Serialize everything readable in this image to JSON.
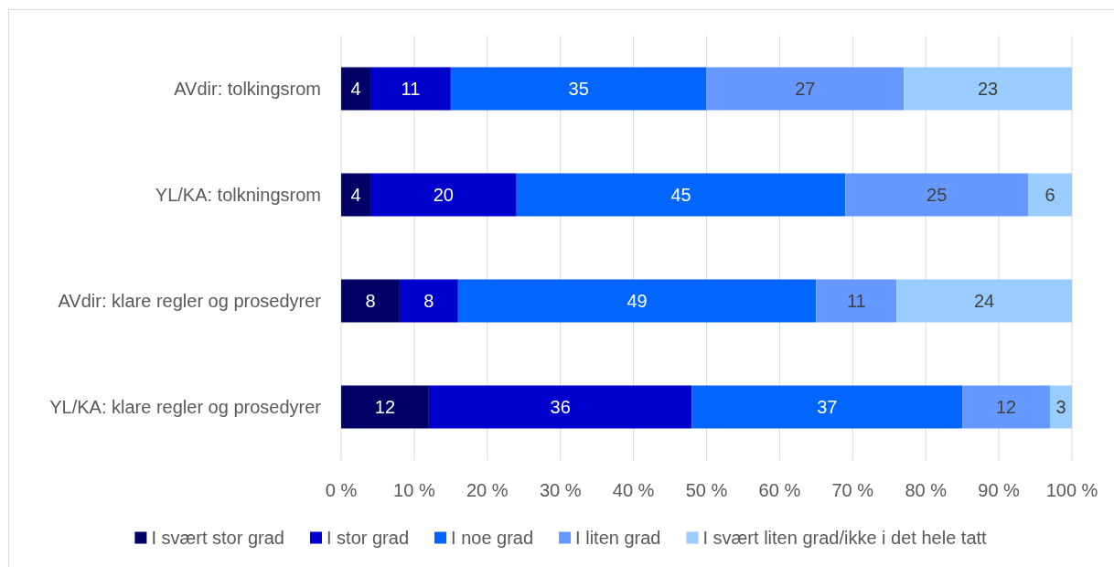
{
  "chart_data": {
    "type": "bar",
    "orientation": "horizontal",
    "stacked": true,
    "categories": [
      "AVdir: tolkingsrom",
      "YL/KA: tolkningsrom",
      "AVdir: klare regler og prosedyrer",
      "YL/KA: klare regler og prosedyrer"
    ],
    "series": [
      {
        "name": "I svært stor grad",
        "color": "#000066",
        "values": [
          4,
          4,
          8,
          12
        ]
      },
      {
        "name": "I stor grad",
        "color": "#0000cc",
        "values": [
          11,
          20,
          8,
          36
        ]
      },
      {
        "name": "I noe grad",
        "color": "#0066ff",
        "values": [
          35,
          45,
          49,
          37
        ]
      },
      {
        "name": "I liten grad",
        "color": "#6699ff",
        "values": [
          27,
          25,
          11,
          12
        ]
      },
      {
        "name": "I svært liten grad/ikke i det hele tatt",
        "color": "#99ccff",
        "values": [
          23,
          6,
          24,
          3
        ]
      }
    ],
    "xlim": [
      0,
      100
    ],
    "xticks": [
      {
        "value": 0,
        "label": "0 %"
      },
      {
        "value": 10,
        "label": "10 %"
      },
      {
        "value": 20,
        "label": "20 %"
      },
      {
        "value": 30,
        "label": "30 %"
      },
      {
        "value": 40,
        "label": "40 %"
      },
      {
        "value": 50,
        "label": "50 %"
      },
      {
        "value": 60,
        "label": "60 %"
      },
      {
        "value": 70,
        "label": "70 %"
      },
      {
        "value": 80,
        "label": "80 %"
      },
      {
        "value": 90,
        "label": "90 %"
      },
      {
        "value": 100,
        "label": "100 %"
      }
    ],
    "grid": "x",
    "legend": "bottom",
    "data_labels": true
  }
}
